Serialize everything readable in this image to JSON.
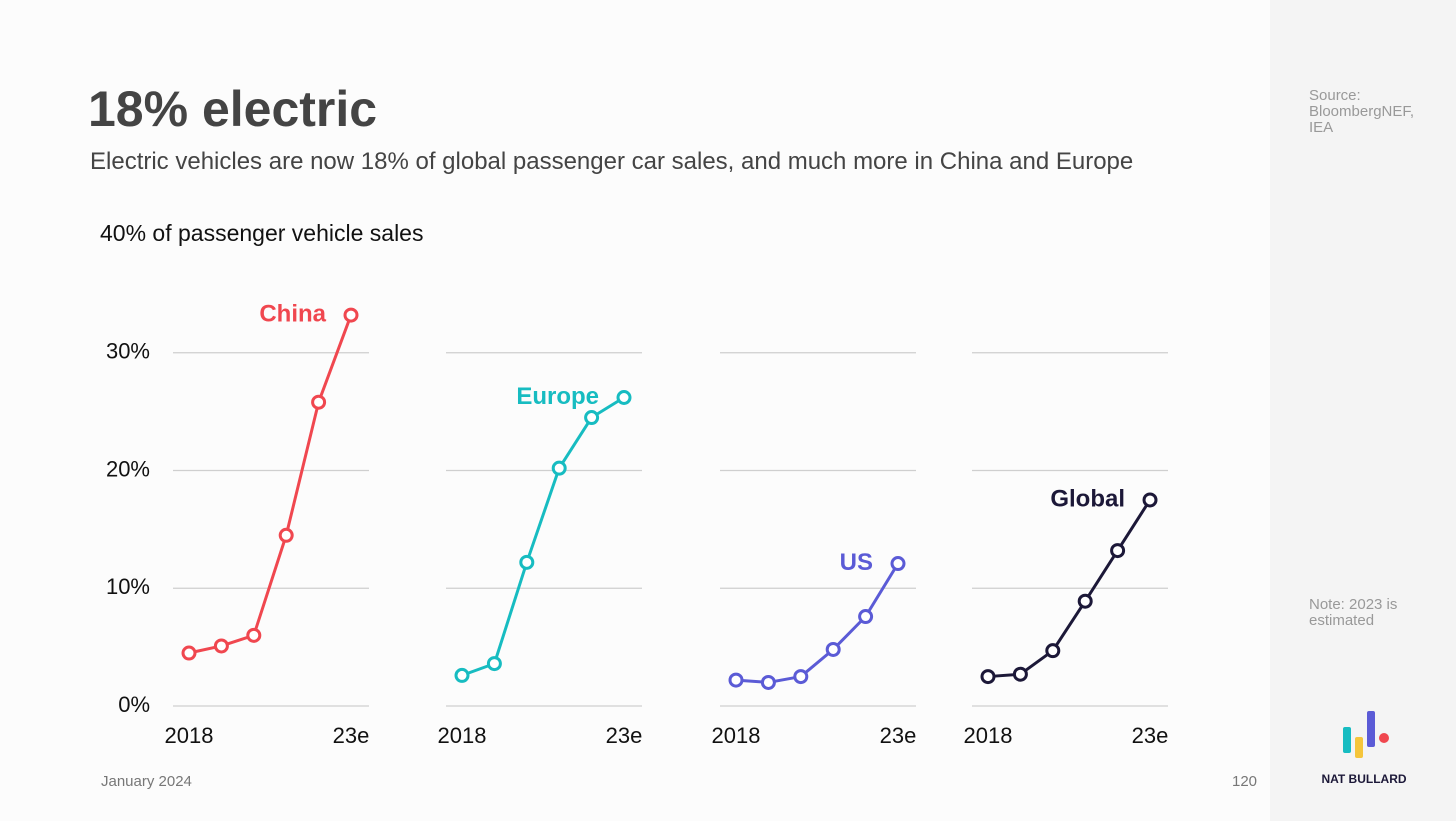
{
  "header": {
    "title": "18% electric",
    "subtitle": "Electric vehicles are now 18% of global passenger car sales, and much more in China and Europe"
  },
  "source": "Source: BloombergNEF, IEA",
  "note": "Note: 2023 is estimated",
  "footer": {
    "date": "January 2024",
    "page": "120",
    "brand": "NAT BULLARD"
  },
  "chart_data": [
    {
      "type": "line",
      "y_label": "40% of passenger vehicle sales",
      "categories": [
        "2018",
        null,
        null,
        null,
        null,
        "23e"
      ],
      "series": [
        {
          "name": "China",
          "color": "#f0474f",
          "values": [
            4.5,
            5.1,
            6.0,
            14.5,
            25.8,
            33.2
          ]
        }
      ],
      "ylim": [
        0,
        40
      ],
      "yticks": [
        {
          "value": 0,
          "label": "0%"
        },
        {
          "value": 10,
          "label": "10%"
        },
        {
          "value": 20,
          "label": "20%"
        },
        {
          "value": 30,
          "label": "30%"
        }
      ],
      "grid": true
    },
    {
      "type": "line",
      "categories": [
        "2018",
        null,
        null,
        null,
        null,
        "23e"
      ],
      "series": [
        {
          "name": "Europe",
          "color": "#17bcc1",
          "values": [
            2.6,
            3.6,
            12.2,
            20.2,
            24.5,
            26.2
          ]
        }
      ],
      "ylim": [
        0,
        40
      ],
      "grid": true
    },
    {
      "type": "line",
      "categories": [
        "2018",
        null,
        null,
        null,
        null,
        "23e"
      ],
      "series": [
        {
          "name": "US",
          "color": "#5b5bd6",
          "values": [
            2.2,
            2.0,
            2.5,
            4.8,
            7.6,
            12.1
          ]
        }
      ],
      "ylim": [
        0,
        40
      ],
      "grid": true
    },
    {
      "type": "line",
      "categories": [
        "2018",
        null,
        null,
        null,
        null,
        "23e"
      ],
      "series": [
        {
          "name": "Global",
          "color": "#1c1838",
          "values": [
            2.5,
            2.7,
            4.7,
            8.9,
            13.2,
            17.5
          ]
        }
      ],
      "ylim": [
        0,
        40
      ],
      "grid": true
    }
  ]
}
